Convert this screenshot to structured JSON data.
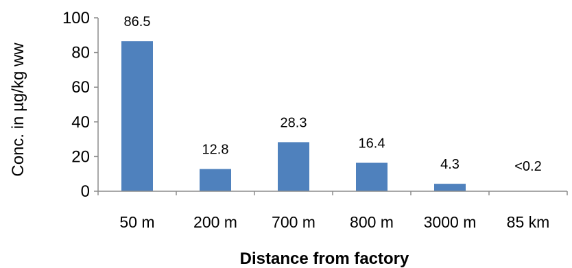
{
  "chart_data": {
    "type": "bar",
    "title": "",
    "xlabel": "Distance from factory",
    "ylabel": "Conc. in µg/kg ww",
    "ylim": [
      0,
      100
    ],
    "yticks": [
      "0",
      "20",
      "40",
      "60",
      "80",
      "100"
    ],
    "grid": false,
    "categories": [
      "50 m",
      "200 m",
      "700 m",
      "800 m",
      "3000 m",
      "85 km"
    ],
    "values": [
      86.5,
      12.8,
      28.3,
      16.4,
      4.3,
      null
    ],
    "data_labels": [
      "86.5",
      "12.8",
      "28.3",
      "16.4",
      "4.3",
      "<0.2"
    ],
    "colors": {
      "bar": "#4f81bd",
      "axis": "#8c8c8c",
      "below_detection_label": "#1f3fbf"
    }
  }
}
